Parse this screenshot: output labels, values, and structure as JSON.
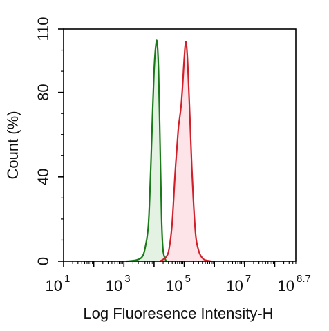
{
  "chart_data": {
    "type": "area",
    "title": "",
    "xlabel": "Log Fluoresence Intensity-H",
    "ylabel": "Count  (%)",
    "x_scale": "log",
    "xlim": [
      10,
      501187233.6
    ],
    "ylim": [
      0,
      110
    ],
    "x_ticks": [
      {
        "value": 10,
        "base": "10",
        "exp": "1"
      },
      {
        "value": 1000,
        "base": "10",
        "exp": "3"
      },
      {
        "value": 100000,
        "base": "10",
        "exp": "5"
      },
      {
        "value": 10000000,
        "base": "10",
        "exp": "7"
      },
      {
        "value": 501187233.6,
        "base": "10",
        "exp": "8.7"
      }
    ],
    "y_ticks": [
      {
        "value": 0,
        "label": "0"
      },
      {
        "value": 40,
        "label": "40"
      },
      {
        "value": 80,
        "label": "80"
      },
      {
        "value": 110,
        "label": "110"
      }
    ],
    "grid": false,
    "legend": "none",
    "series": [
      {
        "color": "#1a7a1a",
        "fill": "#e4f2e4",
        "x": [
          1259,
          2512,
          3981,
          5012,
          6310,
          7079,
          7943,
          8913,
          10000,
          11220,
          12589,
          14125,
          15849,
          17783,
          19953,
          25119
        ],
        "y": [
          0,
          0.5,
          2,
          6,
          15,
          28,
          48,
          70,
          90,
          101,
          104,
          90,
          55,
          20,
          5,
          0
        ]
      },
      {
        "color": "#d0202a",
        "fill": "#fde4e8",
        "x": [
          15849,
          25119,
          31623,
          39811,
          50119,
          63096,
          70795,
          79433,
          89125,
          100000,
          112202,
          125893,
          141254,
          158489,
          177828,
          199526,
          223872,
          251189,
          316228,
          398107,
          501187,
          794328
        ],
        "y": [
          0,
          2,
          6,
          18,
          42,
          62,
          68,
          74,
          84,
          96,
          104,
          98,
          82,
          64,
          45,
          30,
          18,
          10,
          4,
          1.5,
          0.5,
          0
        ]
      }
    ]
  }
}
